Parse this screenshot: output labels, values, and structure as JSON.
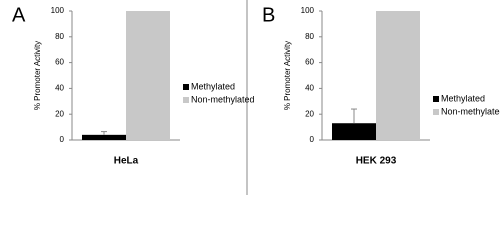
{
  "chart_data": [
    {
      "type": "bar",
      "panel": "A",
      "ylabel": "% Promoter Activity",
      "categories": [
        "HeLa"
      ],
      "series": [
        {
          "name": "Methylated",
          "color": "#000000",
          "values": [
            4
          ],
          "errors": [
            2.5
          ]
        },
        {
          "name": "Non-methylated",
          "color": "#c8c8c8",
          "values": [
            100
          ]
        }
      ],
      "ylim": [
        0,
        100
      ],
      "yticks": [
        0,
        20,
        40,
        60,
        80,
        100
      ]
    },
    {
      "type": "bar",
      "panel": "B",
      "ylabel": "% Promoter Activity",
      "categories": [
        "HEK 293"
      ],
      "series": [
        {
          "name": "Methylated",
          "color": "#000000",
          "values": [
            13
          ],
          "errors": [
            11
          ]
        },
        {
          "name": "Non-methylated",
          "color": "#c8c8c8",
          "values": [
            100
          ]
        }
      ],
      "ylim": [
        0,
        100
      ],
      "yticks": [
        0,
        20,
        40,
        60,
        80,
        100
      ]
    }
  ]
}
